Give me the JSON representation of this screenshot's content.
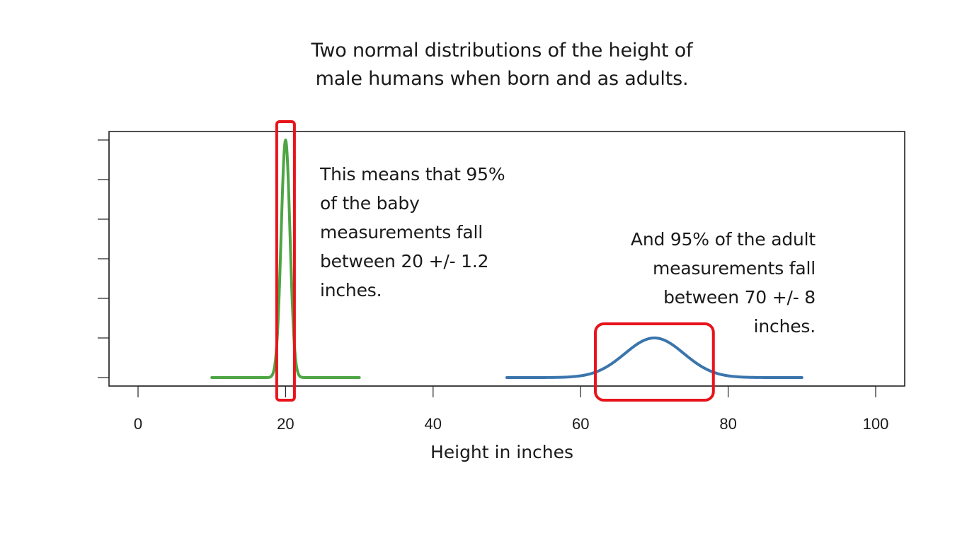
{
  "slide": {
    "title_lines": [
      "Two normal distributions of the height of",
      "male humans when born and as adults."
    ],
    "baby_note_lines": [
      "This means that 95%",
      "of the baby",
      "measurements fall",
      "between 20 +/- 1.2",
      "inches."
    ],
    "adult_note_lines": [
      "And 95% of the adult",
      "measurements fall",
      "between 70 +/- 8",
      "inches."
    ]
  },
  "chart_data": {
    "type": "line",
    "title": "Two normal distributions of the height of male humans when born and as adults.",
    "xlabel": "Height in inches",
    "ylabel": "",
    "xlim": [
      0,
      100
    ],
    "x_ticks": [
      "0",
      "20",
      "40",
      "60",
      "80",
      "100"
    ],
    "y_ticks_count": 7,
    "y_tick_labels_visible": false,
    "grid": false,
    "series": [
      {
        "kind": "normal-density",
        "mean": 20,
        "sd": 0.6,
        "x_range": [
          10,
          30
        ],
        "color": "#4ea544"
      },
      {
        "kind": "normal-density",
        "mean": 70,
        "sd": 4,
        "x_range": [
          50,
          90
        ],
        "color": "#3a75ad"
      }
    ],
    "highlight_boxes": [
      {
        "x_range": [
          18.8,
          21.2
        ],
        "color": "#e8141b"
      },
      {
        "x_range": [
          62,
          78
        ],
        "color": "#e8141b"
      }
    ]
  }
}
